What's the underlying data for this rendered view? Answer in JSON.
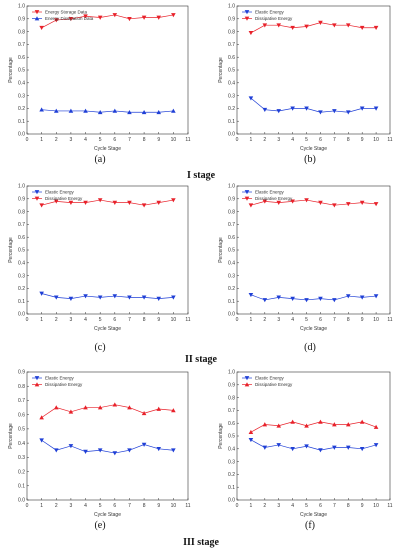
{
  "stage_labels": [
    "I stage",
    "II stage",
    "III stage"
  ],
  "chart_data": [
    {
      "type": "line",
      "panel_label": "(a)",
      "stage": 0,
      "x": [
        1,
        2,
        3,
        4,
        5,
        6,
        7,
        8,
        9,
        10
      ],
      "xlim": [
        0,
        11
      ],
      "ylim": [
        0,
        1.0
      ],
      "xlabel": "Cycle Stage",
      "ylabel": "Percentage",
      "xticks": [
        0,
        1,
        2,
        3,
        4,
        5,
        6,
        7,
        8,
        9,
        10,
        11
      ],
      "yticks": [
        0.0,
        0.1,
        0.2,
        0.3,
        0.4,
        0.5,
        0.6,
        0.7,
        0.8,
        0.9,
        1.0
      ],
      "legend_position": "top-left",
      "series": [
        {
          "name": "Energy Storage Data",
          "color": "#e8212a",
          "marker": "triangle-down",
          "values": [
            0.83,
            0.89,
            0.9,
            0.92,
            0.91,
            0.93,
            0.9,
            0.91,
            0.91,
            0.93
          ]
        },
        {
          "name": "Energy Dissipation Data",
          "color": "#1f3fd6",
          "marker": "triangle-up",
          "values": [
            0.19,
            0.18,
            0.18,
            0.18,
            0.17,
            0.18,
            0.17,
            0.17,
            0.17,
            0.18
          ]
        }
      ]
    },
    {
      "type": "line",
      "panel_label": "(b)",
      "stage": 0,
      "x": [
        1,
        2,
        3,
        4,
        5,
        6,
        7,
        8,
        9,
        10
      ],
      "xlim": [
        0,
        11
      ],
      "ylim": [
        0,
        1.0
      ],
      "xlabel": "Cycle Stage",
      "ylabel": "Percentage",
      "xticks": [
        0,
        1,
        2,
        3,
        4,
        5,
        6,
        7,
        8,
        9,
        10,
        11
      ],
      "yticks": [
        0.0,
        0.1,
        0.2,
        0.3,
        0.4,
        0.5,
        0.6,
        0.7,
        0.8,
        0.9,
        1.0
      ],
      "legend_position": "top-left",
      "series": [
        {
          "name": "Elastic Energy",
          "color": "#1f3fd6",
          "marker": "triangle-down",
          "values": [
            0.28,
            0.19,
            0.18,
            0.2,
            0.2,
            0.17,
            0.18,
            0.17,
            0.2,
            0.2
          ]
        },
        {
          "name": "Dissipative Energy",
          "color": "#e8212a",
          "marker": "triangle-down",
          "values": [
            0.79,
            0.85,
            0.85,
            0.83,
            0.84,
            0.87,
            0.85,
            0.85,
            0.83,
            0.83
          ]
        }
      ]
    },
    {
      "type": "line",
      "panel_label": "(c)",
      "stage": 1,
      "x": [
        1,
        2,
        3,
        4,
        5,
        6,
        7,
        8,
        9,
        10
      ],
      "xlim": [
        0,
        11
      ],
      "ylim": [
        0,
        1.0
      ],
      "xlabel": "Cycle Stage",
      "ylabel": "Percentage",
      "xticks": [
        0,
        1,
        2,
        3,
        4,
        5,
        6,
        7,
        8,
        9,
        10,
        11
      ],
      "yticks": [
        0.0,
        0.1,
        0.2,
        0.3,
        0.4,
        0.5,
        0.6,
        0.7,
        0.8,
        0.9,
        1.0
      ],
      "legend_position": "top-left",
      "series": [
        {
          "name": "Elastic Energy",
          "color": "#1f3fd6",
          "marker": "triangle-down",
          "values": [
            0.16,
            0.13,
            0.12,
            0.14,
            0.13,
            0.14,
            0.13,
            0.13,
            0.12,
            0.13
          ]
        },
        {
          "name": "Dissipative Energy",
          "color": "#e8212a",
          "marker": "triangle-down",
          "values": [
            0.85,
            0.88,
            0.87,
            0.87,
            0.89,
            0.87,
            0.87,
            0.85,
            0.87,
            0.89
          ]
        }
      ]
    },
    {
      "type": "line",
      "panel_label": "(d)",
      "stage": 1,
      "x": [
        1,
        2,
        3,
        4,
        5,
        6,
        7,
        8,
        9,
        10
      ],
      "xlim": [
        0,
        11
      ],
      "ylim": [
        0,
        1.0
      ],
      "xlabel": "Cycle Stage",
      "ylabel": "Percentage",
      "xticks": [
        0,
        1,
        2,
        3,
        4,
        5,
        6,
        7,
        8,
        9,
        10,
        11
      ],
      "yticks": [
        0.0,
        0.1,
        0.2,
        0.3,
        0.4,
        0.5,
        0.6,
        0.7,
        0.8,
        0.9,
        1.0
      ],
      "legend_position": "top-left",
      "series": [
        {
          "name": "Elastic Energy",
          "color": "#1f3fd6",
          "marker": "triangle-down",
          "values": [
            0.15,
            0.11,
            0.13,
            0.12,
            0.11,
            0.12,
            0.11,
            0.14,
            0.13,
            0.14
          ]
        },
        {
          "name": "Dissipative Energy",
          "color": "#e8212a",
          "marker": "triangle-down",
          "values": [
            0.85,
            0.88,
            0.87,
            0.88,
            0.89,
            0.87,
            0.85,
            0.86,
            0.87,
            0.86
          ]
        }
      ]
    },
    {
      "type": "line",
      "panel_label": "(e)",
      "stage": 2,
      "x": [
        1,
        2,
        3,
        4,
        5,
        6,
        7,
        8,
        9,
        10
      ],
      "xlim": [
        0,
        11
      ],
      "ylim": [
        0,
        0.9
      ],
      "xlabel": "Cycle Stage",
      "ylabel": "Percentage",
      "xticks": [
        0,
        1,
        2,
        3,
        4,
        5,
        6,
        7,
        8,
        9,
        10,
        11
      ],
      "yticks": [
        0.0,
        0.1,
        0.2,
        0.3,
        0.4,
        0.5,
        0.6,
        0.7,
        0.8,
        0.9
      ],
      "legend_position": "top-left",
      "series": [
        {
          "name": "Elastic Energy",
          "color": "#1f3fd6",
          "marker": "triangle-down",
          "values": [
            0.42,
            0.35,
            0.38,
            0.34,
            0.35,
            0.33,
            0.35,
            0.39,
            0.36,
            0.35
          ]
        },
        {
          "name": "Dissipative Energy",
          "color": "#e8212a",
          "marker": "triangle-up",
          "values": [
            0.58,
            0.65,
            0.62,
            0.65,
            0.65,
            0.67,
            0.65,
            0.61,
            0.64,
            0.63
          ]
        }
      ]
    },
    {
      "type": "line",
      "panel_label": "(f)",
      "stage": 2,
      "x": [
        1,
        2,
        3,
        4,
        5,
        6,
        7,
        8,
        9,
        10
      ],
      "xlim": [
        0,
        11
      ],
      "ylim": [
        0,
        1.0
      ],
      "xlabel": "Cycle Stage",
      "ylabel": "Percentage",
      "xticks": [
        0,
        1,
        2,
        3,
        4,
        5,
        6,
        7,
        8,
        9,
        10,
        11
      ],
      "yticks": [
        0.0,
        0.1,
        0.2,
        0.3,
        0.4,
        0.5,
        0.6,
        0.7,
        0.8,
        0.9,
        1.0
      ],
      "legend_position": "top-left",
      "series": [
        {
          "name": "Elastic Energy",
          "color": "#1f3fd6",
          "marker": "triangle-down",
          "values": [
            0.47,
            0.41,
            0.43,
            0.4,
            0.42,
            0.39,
            0.41,
            0.41,
            0.4,
            0.43
          ]
        },
        {
          "name": "Dissipative Energy",
          "color": "#e8212a",
          "marker": "triangle-up",
          "values": [
            0.53,
            0.59,
            0.58,
            0.61,
            0.58,
            0.61,
            0.59,
            0.59,
            0.61,
            0.57
          ]
        }
      ]
    }
  ]
}
